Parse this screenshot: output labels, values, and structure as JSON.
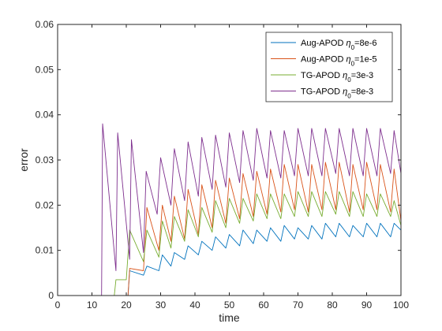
{
  "chart_data": {
    "type": "line",
    "title": "",
    "xlabel": "time",
    "ylabel": "error",
    "xlim": [
      0,
      100
    ],
    "ylim": [
      0,
      0.06
    ],
    "xticks": [
      0,
      10,
      20,
      30,
      40,
      50,
      60,
      70,
      80,
      90,
      100
    ],
    "yticks": [
      0,
      0.01,
      0.02,
      0.03,
      0.04,
      0.05,
      0.06
    ],
    "xtick_labels": [
      "0",
      "10",
      "20",
      "30",
      "40",
      "50",
      "60",
      "70",
      "80",
      "90",
      "100"
    ],
    "ytick_labels": [
      "0",
      "0.01",
      "0.02",
      "0.03",
      "0.04",
      "0.05",
      "0.06"
    ],
    "grid": false,
    "legend_position": "top-right",
    "series": [
      {
        "name": "Aug-APOD η0=8e-6",
        "legend_prefix": "Aug-APOD ",
        "legend_eta": "η",
        "legend_sub": "0",
        "legend_value": "=8e-6",
        "color": "#0072BD",
        "points": [
          [
            0,
            0
          ],
          [
            20.5,
            0
          ],
          [
            21,
            0.0055
          ],
          [
            25,
            0.0045
          ],
          [
            26,
            0.0065
          ],
          [
            29.5,
            0.0055
          ],
          [
            30.5,
            0.009
          ],
          [
            33,
            0.0065
          ],
          [
            34,
            0.0095
          ],
          [
            37,
            0.008
          ],
          [
            38,
            0.011
          ],
          [
            41,
            0.009
          ],
          [
            42,
            0.012
          ],
          [
            45,
            0.01
          ],
          [
            46,
            0.013
          ],
          [
            49,
            0.0105
          ],
          [
            50,
            0.0135
          ],
          [
            53,
            0.011
          ],
          [
            54,
            0.0145
          ],
          [
            57,
            0.0115
          ],
          [
            58,
            0.0145
          ],
          [
            61,
            0.012
          ],
          [
            62,
            0.015
          ],
          [
            65,
            0.012
          ],
          [
            66,
            0.0155
          ],
          [
            69,
            0.0125
          ],
          [
            70,
            0.015
          ],
          [
            73,
            0.0125
          ],
          [
            74,
            0.0155
          ],
          [
            77,
            0.0125
          ],
          [
            78,
            0.016
          ],
          [
            81,
            0.013
          ],
          [
            82,
            0.016
          ],
          [
            85,
            0.013
          ],
          [
            86,
            0.0155
          ],
          [
            89,
            0.013
          ],
          [
            90,
            0.016
          ],
          [
            93,
            0.013
          ],
          [
            94,
            0.016
          ],
          [
            97,
            0.013
          ],
          [
            98,
            0.016
          ],
          [
            100,
            0.0145
          ]
        ]
      },
      {
        "name": "Aug-APOD η0=1e-5",
        "legend_prefix": "Aug-APOD ",
        "legend_eta": "η",
        "legend_sub": "0",
        "legend_value": "=1e-5",
        "color": "#D95319",
        "points": [
          [
            0,
            0
          ],
          [
            20.5,
            0
          ],
          [
            21,
            0.006
          ],
          [
            25,
            0.0055
          ],
          [
            26,
            0.0195
          ],
          [
            29.5,
            0.01
          ],
          [
            30.5,
            0.02
          ],
          [
            33,
            0.012
          ],
          [
            34,
            0.022
          ],
          [
            37,
            0.0125
          ],
          [
            38,
            0.0235
          ],
          [
            41,
            0.0135
          ],
          [
            42,
            0.0245
          ],
          [
            45,
            0.015
          ],
          [
            46,
            0.0255
          ],
          [
            49,
            0.016
          ],
          [
            50,
            0.026
          ],
          [
            53,
            0.017
          ],
          [
            54,
            0.027
          ],
          [
            57,
            0.0175
          ],
          [
            58,
            0.0275
          ],
          [
            61,
            0.018
          ],
          [
            62,
            0.028
          ],
          [
            65,
            0.0185
          ],
          [
            66,
            0.029
          ],
          [
            69,
            0.019
          ],
          [
            70,
            0.029
          ],
          [
            73,
            0.0185
          ],
          [
            74,
            0.029
          ],
          [
            77,
            0.019
          ],
          [
            78,
            0.0295
          ],
          [
            81,
            0.019
          ],
          [
            82,
            0.0295
          ],
          [
            85,
            0.0185
          ],
          [
            86,
            0.029
          ],
          [
            89,
            0.019
          ],
          [
            90,
            0.0295
          ],
          [
            93,
            0.019
          ],
          [
            94,
            0.029
          ],
          [
            97,
            0.0185
          ],
          [
            98,
            0.028
          ],
          [
            100,
            0.0165
          ]
        ]
      },
      {
        "name": "TG-APOD η0=3e-3",
        "legend_prefix": "TG-APOD ",
        "legend_eta": "η",
        "legend_sub": "0",
        "legend_value": "=3e-3",
        "color": "#77AC30",
        "points": [
          [
            0,
            0
          ],
          [
            16.5,
            0
          ],
          [
            17,
            0.0035
          ],
          [
            20,
            0.0035
          ],
          [
            21,
            0.0145
          ],
          [
            25,
            0.0075
          ],
          [
            26,
            0.0145
          ],
          [
            29.5,
            0.0085
          ],
          [
            30.5,
            0.0165
          ],
          [
            33,
            0.0105
          ],
          [
            34,
            0.0175
          ],
          [
            37,
            0.012
          ],
          [
            38,
            0.019
          ],
          [
            41,
            0.013
          ],
          [
            42,
            0.0195
          ],
          [
            45,
            0.014
          ],
          [
            46,
            0.021
          ],
          [
            49,
            0.015
          ],
          [
            50,
            0.0215
          ],
          [
            53,
            0.016
          ],
          [
            54,
            0.0215
          ],
          [
            57,
            0.0165
          ],
          [
            58,
            0.0225
          ],
          [
            61,
            0.017
          ],
          [
            62,
            0.0225
          ],
          [
            65,
            0.017
          ],
          [
            66,
            0.0225
          ],
          [
            69,
            0.0175
          ],
          [
            70,
            0.023
          ],
          [
            73,
            0.0175
          ],
          [
            74,
            0.023
          ],
          [
            77,
            0.0175
          ],
          [
            78,
            0.023
          ],
          [
            81,
            0.018
          ],
          [
            82,
            0.023
          ],
          [
            85,
            0.0175
          ],
          [
            86,
            0.023
          ],
          [
            89,
            0.0175
          ],
          [
            90,
            0.0225
          ],
          [
            93,
            0.0175
          ],
          [
            94,
            0.0225
          ],
          [
            97,
            0.0175
          ],
          [
            98,
            0.021
          ],
          [
            100,
            0.0155
          ]
        ]
      },
      {
        "name": "TG-APOD η0=8e-3",
        "legend_prefix": "TG-APOD ",
        "legend_eta": "η",
        "legend_sub": "0",
        "legend_value": "=8e-3",
        "color": "#7E2F8E",
        "points": [
          [
            0,
            0
          ],
          [
            12.8,
            0
          ],
          [
            13.1,
            0.038
          ],
          [
            17,
            0.0055
          ],
          [
            17.5,
            0.036
          ],
          [
            21,
            0.008
          ],
          [
            21.5,
            0.0345
          ],
          [
            25,
            0.0095
          ],
          [
            25.8,
            0.0275
          ],
          [
            29,
            0.018
          ],
          [
            30,
            0.0305
          ],
          [
            33,
            0.02
          ],
          [
            34,
            0.0325
          ],
          [
            37,
            0.021
          ],
          [
            38,
            0.034
          ],
          [
            41,
            0.022
          ],
          [
            42,
            0.035
          ],
          [
            45,
            0.0235
          ],
          [
            46,
            0.0355
          ],
          [
            49,
            0.024
          ],
          [
            50,
            0.036
          ],
          [
            53,
            0.025
          ],
          [
            54,
            0.0365
          ],
          [
            57,
            0.0255
          ],
          [
            58,
            0.037
          ],
          [
            61,
            0.026
          ],
          [
            62,
            0.0365
          ],
          [
            65,
            0.026
          ],
          [
            66,
            0.0365
          ],
          [
            69,
            0.0265
          ],
          [
            70,
            0.037
          ],
          [
            73,
            0.0265
          ],
          [
            74,
            0.037
          ],
          [
            77,
            0.0265
          ],
          [
            78,
            0.037
          ],
          [
            81,
            0.027
          ],
          [
            82,
            0.037
          ],
          [
            85,
            0.0265
          ],
          [
            86,
            0.037
          ],
          [
            89,
            0.0265
          ],
          [
            90,
            0.037
          ],
          [
            93,
            0.0265
          ],
          [
            94,
            0.037
          ],
          [
            97,
            0.027
          ],
          [
            98,
            0.0365
          ],
          [
            100,
            0.027
          ]
        ]
      }
    ]
  }
}
